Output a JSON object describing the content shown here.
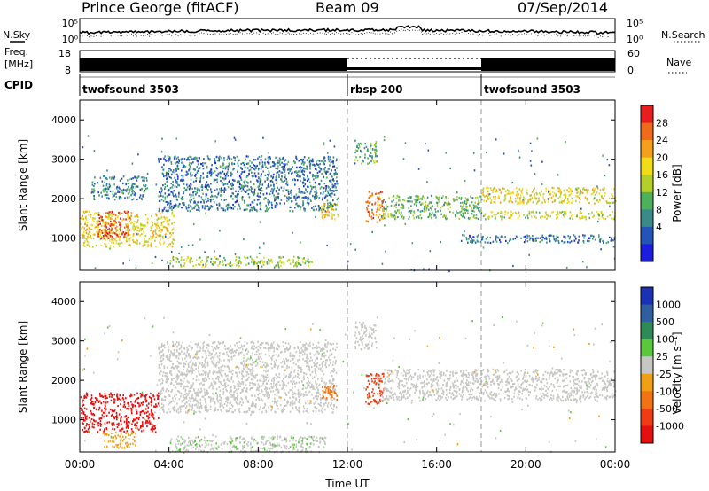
{
  "header": {
    "title": "Prince George (fitACF)",
    "beam": "Beam 09",
    "date": "07/Sep/2014"
  },
  "strip_labels": {
    "nsky": "N.Sky",
    "nsearch": "N.Search",
    "freq_a": "Freq.",
    "freq_b": "[MHz]",
    "nave": "Nave",
    "cpid": "CPID"
  },
  "noise_axis": {
    "left_ticks": [
      "10^5",
      "10^0"
    ],
    "right_ticks": [
      "10^5",
      "10^0"
    ]
  },
  "freq_axis": {
    "left_ticks": [
      "18",
      "8"
    ],
    "right_ticks": [
      "60",
      "0"
    ]
  },
  "cpid_segments": [
    {
      "label": "twofsound 3503",
      "start_h": 0,
      "end_h": 12
    },
    {
      "label": "rbsp 200",
      "start_h": 12,
      "end_h": 18
    },
    {
      "label": "twofsound 3503",
      "start_h": 18,
      "end_h": 24
    }
  ],
  "time_axis": {
    "label": "Time UT",
    "ticks": [
      "00:00",
      "04:00",
      "08:00",
      "12:00",
      "16:00",
      "20:00",
      "00:00"
    ]
  },
  "range_axis": {
    "label": "Slant Range [km]",
    "ticks": [
      "1000",
      "2000",
      "3000",
      "4000"
    ]
  },
  "power_scale": {
    "label": "Power [dB]",
    "labels": [
      "4",
      "8",
      "12",
      "16",
      "20",
      "24",
      "28"
    ],
    "colors": [
      "#1d1de0",
      "#2454b8",
      "#3a8a8a",
      "#4fb05a",
      "#b5cf2a",
      "#f2dc1a",
      "#f5a01c",
      "#f06a1c",
      "#e61e1e"
    ]
  },
  "velocity_scale": {
    "label": "Velocity [m s^-1]",
    "labels": [
      "1000",
      "500",
      "100",
      "25",
      "-25",
      "-100",
      "-500",
      "-1000"
    ],
    "colors": [
      "#1c32b4",
      "#2f5f9e",
      "#2f8a58",
      "#5ac83c",
      "#c6c6c3",
      "#f0a016",
      "#f27314",
      "#ef3c14",
      "#e60f0f"
    ]
  },
  "chart_data": [
    {
      "type": "heatmap",
      "title": "Power",
      "x_label": "Time UT",
      "x_range_hours": [
        0,
        24
      ],
      "y_label": "Slant Range [km]",
      "y_range_km": [
        180,
        4500
      ],
      "value_label": "Power [dB]",
      "value_range": [
        0,
        30
      ],
      "features": [
        {
          "t": [
            0,
            4.2
          ],
          "range_km": [
            800,
            1700
          ],
          "value": 18
        },
        {
          "t": [
            0.8,
            2.2
          ],
          "range_km": [
            1000,
            1700
          ],
          "value": 27
        },
        {
          "t": [
            0.5,
            3
          ],
          "range_km": [
            2000,
            2600
          ],
          "value": 8
        },
        {
          "t": [
            3.5,
            11.5
          ],
          "range_km": [
            1700,
            3100
          ],
          "value": 7
        },
        {
          "t": [
            4,
            10.5
          ],
          "range_km": [
            300,
            550
          ],
          "value": 14
        },
        {
          "t": [
            10.8,
            11.6
          ],
          "range_km": [
            1500,
            1900
          ],
          "value": 18
        },
        {
          "t": [
            12.3,
            13.3
          ],
          "range_km": [
            2900,
            3500
          ],
          "value": 12
        },
        {
          "t": [
            12.8,
            13.6
          ],
          "range_km": [
            1400,
            2200
          ],
          "value": 24
        },
        {
          "t": [
            13.5,
            18
          ],
          "range_km": [
            1500,
            2100
          ],
          "value": 12
        },
        {
          "t": [
            18,
            24
          ],
          "range_km": [
            1900,
            2300
          ],
          "value": 18
        },
        {
          "t": [
            18,
            24
          ],
          "range_km": [
            1500,
            1700
          ],
          "value": 16
        },
        {
          "t": [
            17,
            24
          ],
          "range_km": [
            900,
            1100
          ],
          "value": 6
        }
      ]
    },
    {
      "type": "heatmap",
      "title": "Velocity",
      "x_label": "Time UT",
      "x_range_hours": [
        0,
        24
      ],
      "y_label": "Slant Range [km]",
      "y_range_km": [
        180,
        4500
      ],
      "value_label": "Velocity [m s^-1]",
      "value_range": [
        -1000,
        1000
      ],
      "features": [
        {
          "t": [
            0,
            3.5
          ],
          "range_km": [
            700,
            1700
          ],
          "value": -900
        },
        {
          "t": [
            1,
            2.5
          ],
          "range_km": [
            300,
            700
          ],
          "value": -200
        },
        {
          "t": [
            3.5,
            11.5
          ],
          "range_km": [
            1200,
            3000
          ],
          "value": 0
        },
        {
          "t": [
            4,
            11
          ],
          "range_km": [
            200,
            600
          ],
          "value": 70
        },
        {
          "t": [
            10.8,
            11.5
          ],
          "range_km": [
            1500,
            1900
          ],
          "value": -400
        },
        {
          "t": [
            12.3,
            13.3
          ],
          "range_km": [
            2800,
            3500
          ],
          "value": 0
        },
        {
          "t": [
            12.8,
            13.6
          ],
          "range_km": [
            1400,
            2200
          ],
          "value": -700
        },
        {
          "t": [
            13.5,
            24
          ],
          "range_km": [
            1500,
            2300
          ],
          "value": 0
        }
      ]
    }
  ]
}
